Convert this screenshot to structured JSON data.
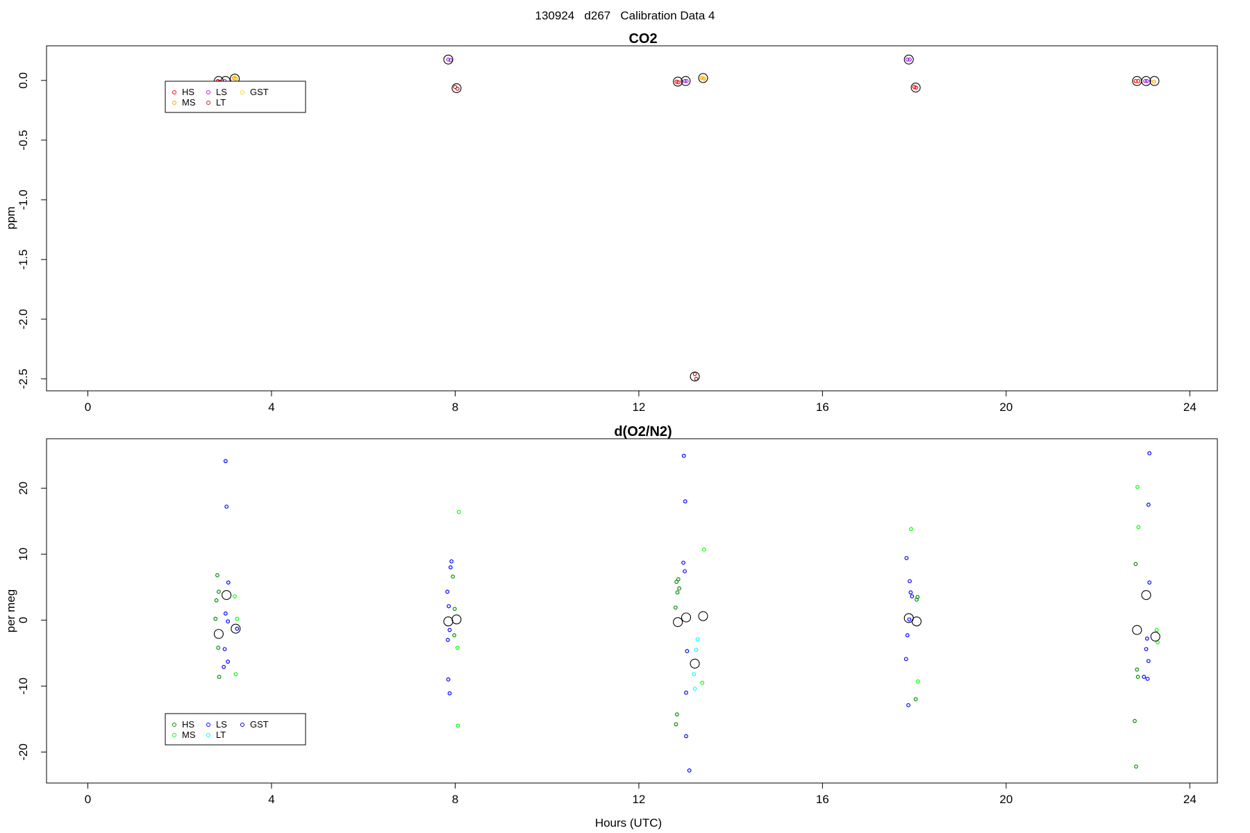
{
  "figure": {
    "title": "130924   d267   Calibration Data 4",
    "xlabel": "Hours (UTC)"
  },
  "chart_data": [
    {
      "type": "scatter",
      "title": "CO2",
      "ylabel": "ppm",
      "xlim": [
        -0.9,
        24.6
      ],
      "ylim": [
        -2.6,
        0.29
      ],
      "x_ticks": [
        0,
        4,
        8,
        12,
        16,
        20,
        24
      ],
      "y_ticks": [
        0.0,
        -0.5,
        -1.0,
        -1.5,
        -2.0,
        -2.5
      ],
      "y_tick_labels": [
        "0.0",
        "-0.5",
        "-1.0",
        "-1.5",
        "-2.0",
        "-2.5"
      ],
      "legend": {
        "position": "top-left",
        "columns": 3,
        "entries": [
          "HS",
          "MS",
          "LS",
          "LT",
          "GST"
        ]
      },
      "colors": {
        "HS": "#ff0000",
        "MS": "#ffa500",
        "LS": "#a020f0",
        "LT": "#b22222",
        "GST": "#ffd700",
        "mean": "#000000"
      },
      "series": [
        {
          "name": "HS",
          "points": [
            [
              2.83,
              -0.005
            ],
            [
              2.86,
              -0.01
            ],
            [
              12.82,
              -0.01
            ],
            [
              12.86,
              -0.015
            ],
            [
              18.0,
              -0.055
            ],
            [
              18.04,
              -0.06
            ],
            [
              22.82,
              -0.005
            ],
            [
              22.88,
              -0.005
            ]
          ]
        },
        {
          "name": "MS",
          "points": [
            [
              3.18,
              0.02
            ],
            [
              3.22,
              0.015
            ],
            [
              13.37,
              0.02
            ],
            [
              13.42,
              0.015
            ],
            [
              23.22,
              -0.01
            ]
          ]
        },
        {
          "name": "LS",
          "points": [
            [
              2.98,
              -0.005
            ],
            [
              7.85,
              0.175
            ],
            [
              7.9,
              0.17
            ],
            [
              13.0,
              -0.005
            ],
            [
              13.04,
              -0.005
            ],
            [
              17.85,
              0.175
            ],
            [
              17.9,
              0.175
            ],
            [
              23.03,
              -0.005
            ],
            [
              23.07,
              -0.005
            ]
          ]
        },
        {
          "name": "LT",
          "points": [
            [
              8.0,
              -0.055
            ],
            [
              8.05,
              -0.07
            ],
            [
              13.22,
              -2.46
            ],
            [
              13.25,
              -2.5
            ]
          ]
        },
        {
          "name": "GST",
          "points": [
            [
              3.2,
              0.025
            ],
            [
              13.4,
              0.02
            ]
          ]
        },
        {
          "name": "mean",
          "points": [
            [
              2.85,
              -0.005
            ],
            [
              3.0,
              -0.005
            ],
            [
              3.2,
              0.015
            ],
            [
              7.85,
              0.175
            ],
            [
              8.03,
              -0.065
            ],
            [
              12.85,
              -0.01
            ],
            [
              13.02,
              -0.005
            ],
            [
              13.22,
              -2.48
            ],
            [
              13.4,
              0.02
            ],
            [
              17.88,
              0.175
            ],
            [
              18.03,
              -0.06
            ],
            [
              22.85,
              -0.005
            ],
            [
              23.05,
              -0.005
            ],
            [
              23.23,
              -0.005
            ]
          ]
        }
      ]
    },
    {
      "type": "scatter",
      "title": "d(O2/N2)",
      "ylabel": "per meg",
      "xlim": [
        -0.9,
        24.6
      ],
      "ylim": [
        -24.7,
        27.5
      ],
      "x_ticks": [
        0,
        4,
        8,
        12,
        16,
        20,
        24
      ],
      "y_ticks": [
        20,
        10,
        0,
        -10,
        -20
      ],
      "y_tick_labels": [
        "20",
        "10",
        "0",
        "-10",
        "-20"
      ],
      "legend": {
        "position": "bottom-left",
        "columns": 3,
        "entries": [
          "HS",
          "MS",
          "LS",
          "LT",
          "GST"
        ]
      },
      "colors": {
        "HS": "#008b00",
        "MS": "#00ff00",
        "LS": "#0000ff",
        "LT": "#00ffff",
        "GST": "#0000cd",
        "mean": "#000000"
      },
      "series": [
        {
          "name": "HS",
          "points": [
            [
              2.82,
              6.8
            ],
            [
              2.85,
              4.3
            ],
            [
              2.8,
              3.0
            ],
            [
              2.78,
              0.2
            ],
            [
              2.84,
              -4.2
            ],
            [
              2.86,
              -8.6
            ],
            [
              7.95,
              6.6
            ],
            [
              7.99,
              1.7
            ],
            [
              7.98,
              -2.3
            ],
            [
              12.82,
              5.8
            ],
            [
              12.86,
              6.2
            ],
            [
              12.88,
              4.8
            ],
            [
              12.84,
              4.2
            ],
            [
              12.8,
              1.9
            ],
            [
              12.83,
              -14.3
            ],
            [
              12.81,
              -15.8
            ],
            [
              18.05,
              3.1
            ],
            [
              18.07,
              3.5
            ],
            [
              18.03,
              -12.0
            ],
            [
              22.82,
              8.5
            ],
            [
              22.85,
              -7.5
            ],
            [
              22.87,
              -8.6
            ],
            [
              22.8,
              -15.3
            ],
            [
              22.83,
              -22.2
            ]
          ]
        },
        {
          "name": "MS",
          "points": [
            [
              3.2,
              3.6
            ],
            [
              3.25,
              0.2
            ],
            [
              3.22,
              -8.2
            ],
            [
              8.08,
              16.4
            ],
            [
              8.05,
              -4.2
            ],
            [
              8.06,
              -16.0
            ],
            [
              13.42,
              10.7
            ],
            [
              13.38,
              -9.5
            ],
            [
              17.93,
              13.8
            ],
            [
              18.08,
              -9.3
            ],
            [
              22.86,
              20.2
            ],
            [
              22.88,
              14.1
            ],
            [
              23.28,
              -1.5
            ],
            [
              23.3,
              -3.4
            ]
          ]
        },
        {
          "name": "LS",
          "points": [
            [
              3.0,
              24.1
            ],
            [
              3.02,
              17.2
            ],
            [
              3.06,
              5.7
            ],
            [
              3.0,
              1.0
            ],
            [
              3.05,
              -0.2
            ],
            [
              2.98,
              -4.4
            ],
            [
              3.05,
              -6.3
            ],
            [
              2.96,
              -7.1
            ],
            [
              7.92,
              8.9
            ],
            [
              7.9,
              8.0
            ],
            [
              7.83,
              4.3
            ],
            [
              7.86,
              2.1
            ],
            [
              7.88,
              -1.5
            ],
            [
              7.84,
              -3.0
            ],
            [
              7.85,
              -9.0
            ],
            [
              7.88,
              -11.1
            ],
            [
              12.98,
              24.9
            ],
            [
              13.01,
              18.0
            ],
            [
              12.97,
              8.7
            ],
            [
              13.0,
              7.4
            ],
            [
              13.05,
              -4.7
            ],
            [
              13.03,
              -11.0
            ],
            [
              13.03,
              -17.6
            ],
            [
              13.1,
              -22.8
            ],
            [
              17.83,
              9.4
            ],
            [
              17.9,
              5.9
            ],
            [
              17.92,
              4.2
            ],
            [
              17.95,
              3.6
            ],
            [
              17.89,
              0.1
            ],
            [
              17.85,
              -2.3
            ],
            [
              17.82,
              -5.9
            ],
            [
              17.87,
              -12.9
            ],
            [
              23.12,
              25.3
            ],
            [
              23.1,
              17.5
            ],
            [
              23.12,
              5.7
            ],
            [
              23.07,
              -2.8
            ],
            [
              23.05,
              -4.4
            ],
            [
              23.1,
              -6.2
            ],
            [
              23.0,
              -8.6
            ],
            [
              23.08,
              -8.9
            ]
          ]
        },
        {
          "name": "LT",
          "points": [
            [
              13.28,
              -2.9
            ],
            [
              13.25,
              -4.5
            ],
            [
              13.2,
              -8.2
            ],
            [
              13.22,
              -10.4
            ]
          ]
        },
        {
          "name": "GST",
          "points": [
            [
              3.25,
              -1.3
            ]
          ]
        },
        {
          "name": "mean",
          "points": [
            [
              2.85,
              -2.1
            ],
            [
              3.02,
              3.8
            ],
            [
              3.22,
              -1.3
            ],
            [
              7.85,
              -0.2
            ],
            [
              8.03,
              0.1
            ],
            [
              12.85,
              -0.3
            ],
            [
              13.03,
              0.4
            ],
            [
              13.22,
              -6.6
            ],
            [
              13.4,
              0.6
            ],
            [
              17.88,
              0.3
            ],
            [
              18.05,
              -0.2
            ],
            [
              22.85,
              -1.5
            ],
            [
              23.05,
              3.8
            ],
            [
              23.25,
              -2.5
            ]
          ]
        }
      ]
    }
  ]
}
